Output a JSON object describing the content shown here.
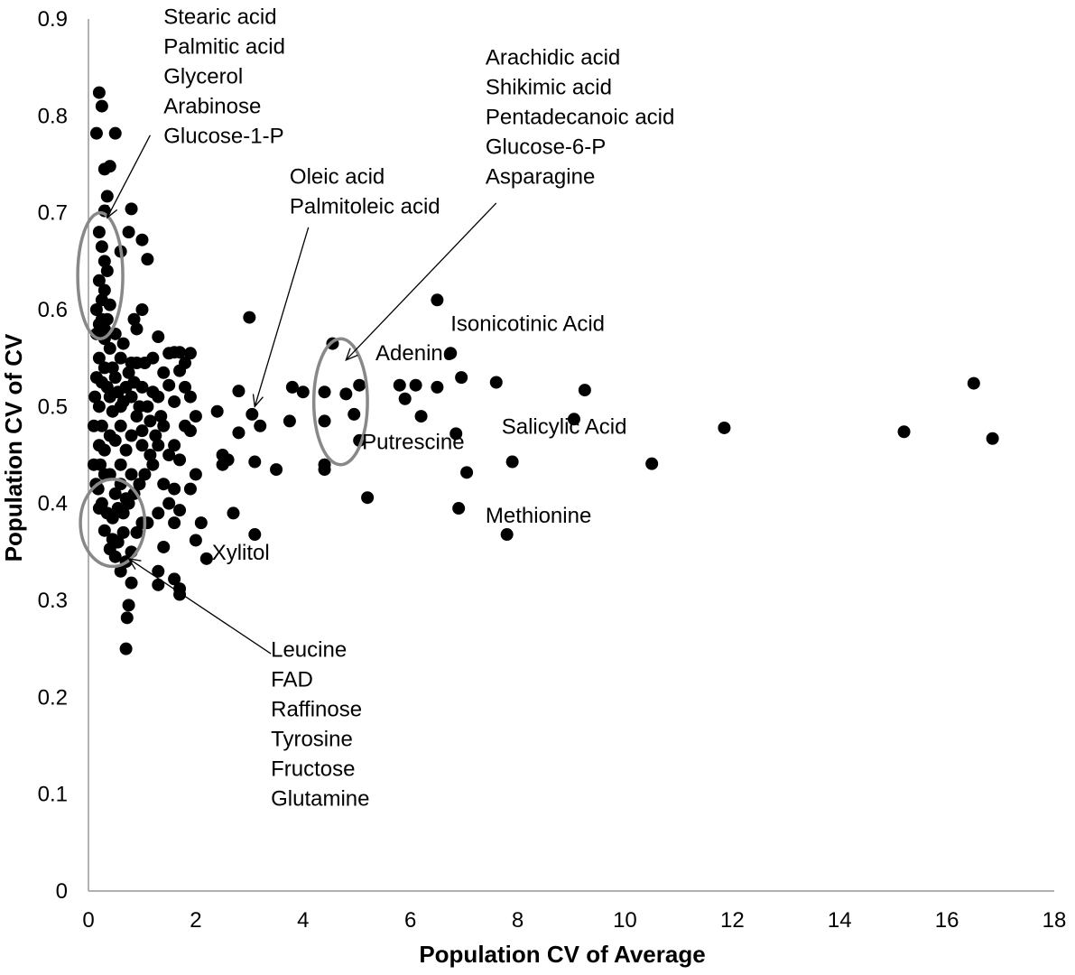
{
  "chart_data": {
    "type": "scatter",
    "title": "",
    "xlabel": "Population CV of Average",
    "ylabel": "Population CV of CV",
    "xlim": [
      0,
      18
    ],
    "ylim": [
      0,
      0.9
    ],
    "x_ticks": [
      0,
      2,
      4,
      6,
      8,
      10,
      12,
      14,
      16,
      18
    ],
    "y_ticks": [
      0,
      0.1,
      0.2,
      0.3,
      0.4,
      0.5,
      0.6,
      0.7,
      0.8,
      0.9
    ],
    "x_tick_labels": [
      "0",
      "2",
      "4",
      "6",
      "8",
      "10",
      "12",
      "14",
      "16",
      "18"
    ],
    "y_tick_labels": [
      "0",
      "0.1",
      "0.2",
      "0.3",
      "0.4",
      "0.5",
      "0.6",
      "0.7",
      "0.8",
      "0.9"
    ],
    "grid": false,
    "legend": "none",
    "marker_color": "#000000",
    "highlight_color": "#888888",
    "points": [
      [
        0.2,
        0.824
      ],
      [
        0.25,
        0.81
      ],
      [
        0.15,
        0.782
      ],
      [
        0.5,
        0.782
      ],
      [
        0.4,
        0.748
      ],
      [
        0.3,
        0.745
      ],
      [
        0.35,
        0.717
      ],
      [
        0.3,
        0.702
      ],
      [
        0.8,
        0.704
      ],
      [
        1.0,
        0.672
      ],
      [
        1.1,
        0.652
      ],
      [
        0.75,
        0.68
      ],
      [
        0.6,
        0.66
      ],
      [
        0.2,
        0.68
      ],
      [
        0.25,
        0.665
      ],
      [
        0.3,
        0.65
      ],
      [
        0.35,
        0.64
      ],
      [
        0.2,
        0.63
      ],
      [
        0.3,
        0.62
      ],
      [
        0.25,
        0.61
      ],
      [
        0.4,
        0.605
      ],
      [
        0.35,
        0.59
      ],
      [
        0.2,
        0.585
      ],
      [
        0.15,
        0.575
      ],
      [
        0.3,
        0.57
      ],
      [
        0.5,
        0.575
      ],
      [
        1.0,
        0.6
      ],
      [
        0.85,
        0.59
      ],
      [
        0.9,
        0.58
      ],
      [
        1.3,
        0.572
      ],
      [
        0.8,
        0.545
      ],
      [
        0.9,
        0.545
      ],
      [
        1.2,
        0.55
      ],
      [
        1.5,
        0.555
      ],
      [
        1.6,
        0.556
      ],
      [
        1.7,
        0.556
      ],
      [
        1.9,
        0.555
      ],
      [
        1.8,
        0.545
      ],
      [
        1.4,
        0.535
      ],
      [
        1.7,
        0.537
      ],
      [
        1.5,
        0.522
      ],
      [
        1.8,
        0.52
      ],
      [
        1.9,
        0.51
      ],
      [
        2.0,
        0.49
      ],
      [
        1.6,
        0.505
      ],
      [
        1.3,
        0.51
      ],
      [
        1.2,
        0.515
      ],
      [
        1.1,
        0.5
      ],
      [
        1.4,
        0.48
      ],
      [
        1.0,
        0.475
      ],
      [
        1.3,
        0.46
      ],
      [
        1.6,
        0.46
      ],
      [
        1.7,
        0.445
      ],
      [
        1.8,
        0.48
      ],
      [
        1.9,
        0.475
      ],
      [
        1.5,
        0.45
      ],
      [
        1.2,
        0.44
      ],
      [
        1.4,
        0.42
      ],
      [
        1.6,
        0.415
      ],
      [
        1.5,
        0.4
      ],
      [
        1.3,
        0.39
      ],
      [
        1.1,
        0.38
      ],
      [
        1.4,
        0.355
      ],
      [
        1.9,
        0.415
      ],
      [
        2.0,
        0.43
      ],
      [
        2.4,
        0.495
      ],
      [
        2.5,
        0.45
      ],
      [
        2.5,
        0.44
      ],
      [
        2.6,
        0.445
      ],
      [
        1.7,
        0.393
      ],
      [
        1.6,
        0.38
      ],
      [
        2.0,
        0.362
      ],
      [
        2.1,
        0.38
      ],
      [
        2.2,
        0.343
      ],
      [
        2.7,
        0.39
      ],
      [
        1.3,
        0.33
      ],
      [
        1.6,
        0.322
      ],
      [
        1.3,
        0.316
      ],
      [
        1.7,
        0.312
      ],
      [
        1.7,
        0.306
      ],
      [
        0.8,
        0.318
      ],
      [
        0.75,
        0.295
      ],
      [
        0.72,
        0.282
      ],
      [
        0.7,
        0.25
      ],
      [
        0.7,
        0.34
      ],
      [
        0.6,
        0.33
      ],
      [
        0.5,
        0.345
      ],
      [
        0.4,
        0.353
      ],
      [
        0.45,
        0.363
      ],
      [
        0.55,
        0.36
      ],
      [
        0.65,
        0.37
      ],
      [
        0.8,
        0.35
      ],
      [
        0.3,
        0.372
      ],
      [
        0.9,
        0.37
      ],
      [
        1.0,
        0.38
      ],
      [
        0.2,
        0.395
      ],
      [
        0.5,
        0.41
      ],
      [
        0.7,
        0.405
      ],
      [
        0.3,
        0.43
      ],
      [
        0.6,
        0.44
      ],
      [
        0.8,
        0.43
      ],
      [
        0.2,
        0.46
      ],
      [
        0.4,
        0.47
      ],
      [
        0.6,
        0.48
      ],
      [
        0.8,
        0.47
      ],
      [
        1.0,
        0.46
      ],
      [
        0.2,
        0.5
      ],
      [
        0.4,
        0.51
      ],
      [
        0.6,
        0.5
      ],
      [
        0.8,
        0.51
      ],
      [
        1.0,
        0.52
      ],
      [
        0.15,
        0.53
      ],
      [
        0.3,
        0.54
      ],
      [
        0.5,
        0.53
      ],
      [
        0.7,
        0.52
      ],
      [
        0.2,
        0.55
      ],
      [
        0.4,
        0.56
      ],
      [
        0.6,
        0.55
      ],
      [
        0.1,
        0.48
      ],
      [
        0.12,
        0.51
      ],
      [
        0.1,
        0.44
      ],
      [
        0.14,
        0.42
      ],
      [
        0.18,
        0.415
      ],
      [
        0.25,
        0.4
      ],
      [
        0.35,
        0.39
      ],
      [
        0.45,
        0.385
      ],
      [
        0.55,
        0.395
      ],
      [
        0.65,
        0.39
      ],
      [
        0.75,
        0.4
      ],
      [
        0.85,
        0.41
      ],
      [
        0.95,
        0.42
      ],
      [
        1.05,
        0.43
      ],
      [
        1.15,
        0.45
      ],
      [
        1.25,
        0.47
      ],
      [
        1.35,
        0.49
      ],
      [
        0.9,
        0.49
      ],
      [
        0.7,
        0.455
      ],
      [
        0.5,
        0.465
      ],
      [
        0.3,
        0.455
      ],
      [
        0.25,
        0.48
      ],
      [
        0.45,
        0.495
      ],
      [
        0.65,
        0.505
      ],
      [
        0.85,
        0.525
      ],
      [
        1.05,
        0.545
      ],
      [
        0.35,
        0.52
      ],
      [
        0.55,
        0.515
      ],
      [
        0.75,
        0.535
      ],
      [
        0.95,
        0.5
      ],
      [
        1.15,
        0.485
      ],
      [
        0.25,
        0.525
      ],
      [
        0.45,
        0.54
      ],
      [
        0.65,
        0.565
      ],
      [
        0.15,
        0.6
      ],
      [
        0.25,
        0.59
      ],
      [
        0.3,
        0.58
      ],
      [
        0.22,
        0.44
      ],
      [
        0.4,
        0.43
      ],
      [
        0.6,
        0.42
      ],
      [
        2.8,
        0.516
      ],
      [
        2.8,
        0.473
      ],
      [
        3.0,
        0.592
      ],
      [
        3.05,
        0.492
      ],
      [
        3.2,
        0.48
      ],
      [
        3.1,
        0.443
      ],
      [
        3.5,
        0.435
      ],
      [
        3.1,
        0.368
      ],
      [
        3.75,
        0.485
      ],
      [
        3.8,
        0.52
      ],
      [
        4.0,
        0.515
      ],
      [
        4.4,
        0.515
      ],
      [
        4.55,
        0.565
      ],
      [
        4.4,
        0.485
      ],
      [
        4.4,
        0.435
      ],
      [
        4.4,
        0.44
      ],
      [
        4.8,
        0.513
      ],
      [
        4.95,
        0.492
      ],
      [
        5.05,
        0.522
      ],
      [
        5.05,
        0.465
      ],
      [
        5.2,
        0.406
      ],
      [
        5.8,
        0.522
      ],
      [
        5.9,
        0.508
      ],
      [
        6.1,
        0.522
      ],
      [
        6.2,
        0.49
      ],
      [
        6.5,
        0.61
      ],
      [
        6.5,
        0.52
      ],
      [
        6.75,
        0.555
      ],
      [
        6.85,
        0.472
      ],
      [
        6.9,
        0.395
      ],
      [
        6.95,
        0.53
      ],
      [
        7.05,
        0.432
      ],
      [
        7.6,
        0.525
      ],
      [
        7.8,
        0.368
      ],
      [
        7.9,
        0.443
      ],
      [
        9.05,
        0.487
      ],
      [
        9.25,
        0.517
      ],
      [
        10.5,
        0.441
      ],
      [
        11.85,
        0.478
      ],
      [
        15.2,
        0.474
      ],
      [
        16.5,
        0.524
      ],
      [
        16.85,
        0.467
      ]
    ],
    "highlight_ellipses": [
      {
        "cx": 0.22,
        "cy": 0.635,
        "rx": 0.42,
        "ry": 0.065
      },
      {
        "cx": 4.7,
        "cy": 0.505,
        "rx": 0.5,
        "ry": 0.065
      },
      {
        "cx": 0.45,
        "cy": 0.38,
        "rx": 0.6,
        "ry": 0.045
      }
    ],
    "annotations": [
      {
        "lines": [
          "Stearic acid",
          "Palmitic acid",
          "Glycerol",
          "Arabinose",
          "Glucose-1-P"
        ],
        "x": 1.4,
        "y": 0.895,
        "arrow_from": [
          1.15,
          0.78
        ],
        "arrow_to": [
          0.35,
          0.695
        ]
      },
      {
        "lines": [
          "Oleic acid",
          "Palmitoleic acid"
        ],
        "x": 3.75,
        "y": 0.73,
        "arrow_from": [
          4.1,
          0.685
        ],
        "arrow_to": [
          3.1,
          0.5
        ]
      },
      {
        "lines": [
          "Arachidic acid",
          "Shikimic acid",
          "Pentadecanoic acid",
          "Glucose-6-P",
          "Asparagine"
        ],
        "x": 7.4,
        "y": 0.853,
        "arrow_from": [
          7.6,
          0.71
        ],
        "arrow_to": [
          4.8,
          0.548
        ]
      },
      {
        "lines": [
          "Isonicotinic Acid"
        ],
        "x": 6.75,
        "y": 0.578
      },
      {
        "lines": [
          "Adenine"
        ],
        "x": 5.35,
        "y": 0.548
      },
      {
        "lines": [
          "Putrescine"
        ],
        "x": 5.1,
        "y": 0.456
      },
      {
        "lines": [
          "Salicylic Acid"
        ],
        "x": 7.7,
        "y": 0.472
      },
      {
        "lines": [
          "Methionine"
        ],
        "x": 7.4,
        "y": 0.38
      },
      {
        "lines": [
          "Xylitol"
        ],
        "x": 2.3,
        "y": 0.342
      },
      {
        "lines": [
          "Leucine",
          "FAD",
          "Raffinose",
          "Tyrosine",
          "Fructose",
          "Glutamine"
        ],
        "x": 3.4,
        "y": 0.242,
        "arrow_from": [
          3.4,
          0.245
        ],
        "arrow_to": [
          0.75,
          0.343
        ]
      }
    ]
  }
}
